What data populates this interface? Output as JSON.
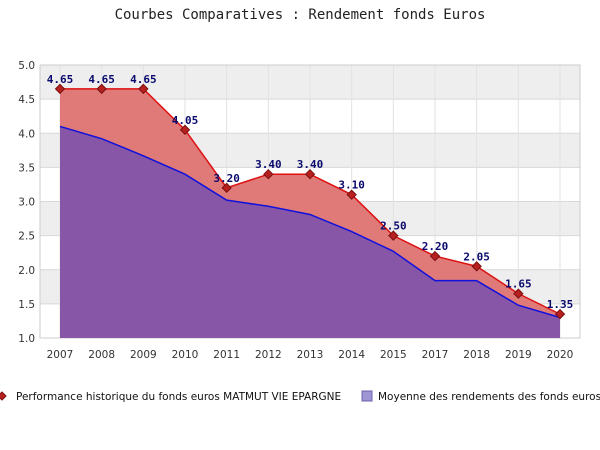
{
  "chart_data": {
    "type": "area",
    "title": "Courbes Comparatives : Rendement fonds Euros",
    "xlabel": "",
    "ylabel": "",
    "categories": [
      "2007",
      "2008",
      "2009",
      "2010",
      "2011",
      "2012",
      "2013",
      "2014",
      "2015",
      "2017",
      "2018",
      "2019",
      "2020"
    ],
    "ylim": [
      1.0,
      5.0
    ],
    "yticks": [
      "1.0",
      "1.5",
      "2.0",
      "2.5",
      "3.0",
      "3.5",
      "4.0",
      "4.5",
      "5.0"
    ],
    "grid": "horizontal bands",
    "legend_position": "bottom",
    "series": [
      {
        "name": "Performance historique du fonds euros MATMUT VIE EPARGNE",
        "values": [
          4.65,
          4.65,
          4.65,
          4.05,
          3.2,
          3.4,
          3.4,
          3.1,
          2.5,
          2.2,
          2.05,
          1.65,
          1.35
        ],
        "labels": [
          "4.65",
          "4.65",
          "4.65",
          "4.05",
          "3.20",
          "3.40",
          "3.40",
          "3.10",
          "2.50",
          "2.20",
          "2.05",
          "1.65",
          "1.35"
        ],
        "color": "#dd1111",
        "fill": "#e07a78"
      },
      {
        "name": "Moyenne des rendements des fonds euros",
        "values": [
          4.1,
          3.92,
          3.67,
          3.4,
          3.02,
          2.93,
          2.81,
          2.56,
          2.27,
          1.84,
          1.84,
          1.48,
          1.3
        ],
        "color": "#1111dd",
        "fill": "#8756a6"
      }
    ]
  }
}
